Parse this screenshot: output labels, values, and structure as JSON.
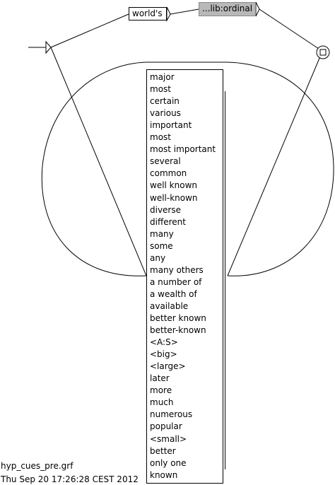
{
  "graph": {
    "top_box_label": "world's",
    "subgraph_label": "...lib:ordinal",
    "list_items": [
      "major",
      "most",
      "certain",
      "various",
      "important",
      "most",
      "most important",
      "several",
      "common",
      "well known",
      "well-known",
      "diverse",
      "different",
      "many",
      "some",
      "any",
      "many others",
      "a number of",
      "a wealth of",
      "available",
      "better known",
      "better-known",
      "<A:S>",
      "<big>",
      "<large>",
      "later",
      "more",
      "much",
      "numerous",
      "popular",
      "<small>",
      "better",
      "only one",
      "known"
    ]
  },
  "footer": {
    "filename": "hyp_cues_pre.grf",
    "timestamp": "Thu Sep 20 17:26:28 CEST 2012"
  }
}
